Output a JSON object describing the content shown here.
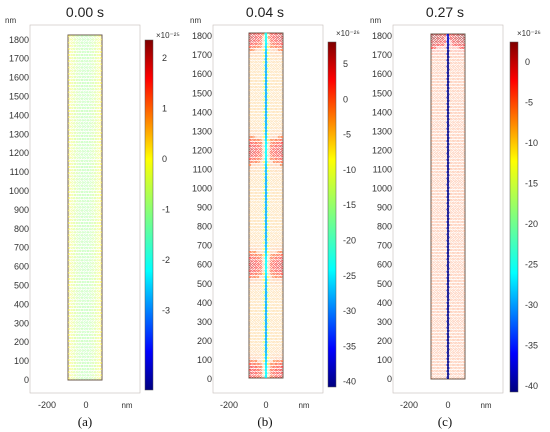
{
  "figure": {
    "panels": [
      {
        "time_label": "0.00 s",
        "sub_label": "(a)",
        "y_unit": "nm",
        "x_unit": "nm",
        "y_ticks": [
          "0",
          "100",
          "200",
          "300",
          "400",
          "500",
          "600",
          "700",
          "800",
          "900",
          "1000",
          "1100",
          "1200",
          "1300",
          "1400",
          "1500",
          "1600",
          "1700",
          "1800"
        ],
        "x_ticks": [
          "-200",
          "0"
        ],
        "colorbar_exponent": "×10⁻²⁵",
        "colorbar_ticks": [
          "2",
          "1",
          "0",
          "-1",
          "-2",
          "-3"
        ]
      },
      {
        "time_label": "0.04 s",
        "sub_label": "(b)",
        "y_unit": "nm",
        "x_unit": "nm",
        "y_ticks": [
          "0",
          "100",
          "200",
          "300",
          "400",
          "500",
          "600",
          "700",
          "800",
          "900",
          "1000",
          "1100",
          "1200",
          "1300",
          "1400",
          "1500",
          "1600",
          "1700",
          "1800"
        ],
        "x_ticks": [
          "-200",
          "0"
        ],
        "colorbar_exponent": "×10⁻²⁶",
        "colorbar_ticks": [
          "5",
          "0",
          "-5",
          "-10",
          "-15",
          "-20",
          "-25",
          "-30",
          "-35",
          "-40"
        ]
      },
      {
        "time_label": "0.27 s",
        "sub_label": "(c)",
        "y_unit": "nm",
        "x_unit": "nm",
        "y_ticks": [
          "0",
          "100",
          "200",
          "300",
          "400",
          "500",
          "600",
          "700",
          "800",
          "900",
          "1000",
          "1100",
          "1200",
          "1300",
          "1400",
          "1500",
          "1600",
          "1700",
          "1800"
        ],
        "x_ticks": [
          "-200",
          "0"
        ],
        "colorbar_exponent": "×10⁻²⁶",
        "colorbar_ticks": [
          "0",
          "-5",
          "-10",
          "-15",
          "-20",
          "-25",
          "-30",
          "-35",
          "-40"
        ]
      }
    ]
  },
  "chart_data": [
    {
      "type": "heatmap",
      "title": "0.00 s",
      "xlabel": "nm",
      "ylabel": "nm",
      "xlim": [
        -300,
        200
      ],
      "ylim": [
        -50,
        1850
      ],
      "domain_x": [
        -85,
        85
      ],
      "domain_y": [
        0,
        1775
      ],
      "colorbar_range": [
        -3.5,
        2.6
      ],
      "colorbar_scale_exponent": -25,
      "colormap": "jet",
      "pattern": "uniform mesh, near-zero values, edges slightly positive",
      "hot_spots": []
    },
    {
      "type": "heatmap",
      "title": "0.04 s",
      "xlabel": "nm",
      "ylabel": "nm",
      "xlim": [
        -300,
        200
      ],
      "ylim": [
        -50,
        1850
      ],
      "domain_x": [
        -85,
        85
      ],
      "domain_y": [
        0,
        1775
      ],
      "colorbar_range": [
        -40,
        7
      ],
      "colorbar_scale_exponent": -26,
      "colormap": "jet",
      "pattern": "negative centre line, positive lobes near the edges",
      "hot_spots": [
        {
          "y": 1760,
          "value": 3
        },
        {
          "y": 1170,
          "value": 2
        },
        {
          "y": 580,
          "value": 2
        },
        {
          "y": 30,
          "value": 1
        }
      ]
    },
    {
      "type": "heatmap",
      "title": "0.27 s",
      "xlabel": "nm",
      "ylabel": "nm",
      "xlim": [
        -300,
        200
      ],
      "ylim": [
        -50,
        1850
      ],
      "domain_x": [
        -85,
        85
      ],
      "domain_y": [
        0,
        1775
      ],
      "colorbar_range": [
        -41,
        3
      ],
      "colorbar_scale_exponent": -26,
      "colormap": "jet",
      "pattern": "strongly negative thin centre line",
      "hot_spots": [
        {
          "y": 1770,
          "value": 1
        },
        {
          "y": 1170,
          "value": -8
        },
        {
          "y": 580,
          "value": -8
        }
      ]
    }
  ],
  "colors": {
    "jet": [
      "#00007f",
      "#0000ff",
      "#007fff",
      "#00ffff",
      "#7fff7f",
      "#ffff00",
      "#ff7f00",
      "#ff0000",
      "#7f0000"
    ],
    "frame": "#6b5a4e",
    "text": "#222222"
  }
}
